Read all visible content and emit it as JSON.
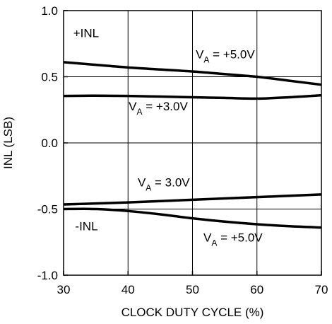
{
  "chart_data": {
    "type": "line",
    "xlabel": "CLOCK DUTY CYCLE (%)",
    "ylabel": "INL (LSB)",
    "xlim": [
      30,
      70
    ],
    "ylim": [
      -1.0,
      1.0
    ],
    "x_ticks": [
      30,
      40,
      50,
      60,
      70
    ],
    "x_tick_labels": [
      "30",
      "40",
      "50",
      "60",
      "70"
    ],
    "y_ticks": [
      1.0,
      0.5,
      0.0,
      -0.5,
      -1.0
    ],
    "y_tick_labels": [
      "1.0",
      "0.5",
      "0.0",
      "-0.5",
      "-1.0"
    ],
    "grid": true,
    "line_color": "#000000",
    "series": [
      {
        "x": [
          30,
          35,
          40,
          45,
          50,
          55,
          60,
          65,
          70
        ],
        "y": [
          0.61,
          0.59,
          0.57,
          0.555,
          0.54,
          0.52,
          0.5,
          0.47,
          0.44
        ]
      },
      {
        "x": [
          30,
          35,
          40,
          45,
          50,
          55,
          60,
          65,
          70
        ],
        "y": [
          0.355,
          0.357,
          0.355,
          0.35,
          0.345,
          0.34,
          0.335,
          0.345,
          0.36
        ]
      },
      {
        "x": [
          30,
          40,
          50,
          60,
          70
        ],
        "y": [
          -0.465,
          -0.45,
          -0.43,
          -0.41,
          -0.39
        ]
      },
      {
        "x": [
          30,
          35,
          40,
          45,
          50,
          55,
          60,
          65,
          70
        ],
        "y": [
          -0.5,
          -0.5,
          -0.515,
          -0.54,
          -0.57,
          -0.595,
          -0.615,
          -0.63,
          -0.64
        ]
      }
    ],
    "annotations": [
      {
        "text": "+INL",
        "x": 31.5,
        "y": 0.8
      },
      {
        "text": "V",
        "sub": "A",
        "rest": " = +5.0V",
        "x": 50.5,
        "y": 0.64
      },
      {
        "text": "V",
        "sub": "A",
        "rest": " = +3.0V",
        "x": 40.1,
        "y": 0.245
      },
      {
        "text": "V",
        "sub": "A",
        "rest": " = 3.0V",
        "x": 41.5,
        "y": -0.33
      },
      {
        "text": "-INL",
        "x": 31.8,
        "y": -0.66
      },
      {
        "text": "V",
        "sub": "A",
        "rest": " = +5.0V",
        "x": 51.7,
        "y": -0.745
      }
    ]
  }
}
